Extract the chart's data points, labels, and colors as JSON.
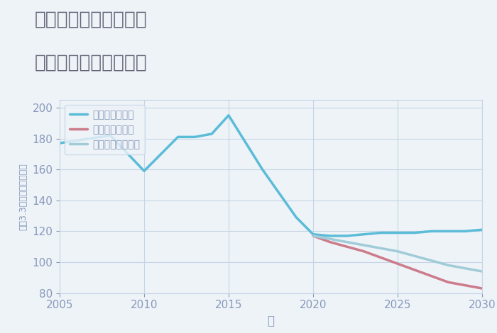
{
  "title_line1": "兵庫県西宮市石在町の",
  "title_line2": "中古戸建ての価格推移",
  "xlabel": "年",
  "ylabel": "坪（3.3㎡）単価（万円）",
  "ylim": [
    80,
    205
  ],
  "yticks": [
    80,
    100,
    120,
    140,
    160,
    180,
    200
  ],
  "xlim": [
    2005,
    2030
  ],
  "xticks": [
    2005,
    2010,
    2015,
    2020,
    2025,
    2030
  ],
  "background_color": "#eef3f8",
  "plot_bg_color": "#eef3f8",
  "grid_color": "#c5d5e5",
  "good_scenario": {
    "label": "グッドシナリオ",
    "color": "#5bbcd8",
    "linewidth": 2.5,
    "x": [
      2005,
      2008,
      2010,
      2012,
      2013,
      2014,
      2015,
      2017,
      2019,
      2020,
      2021,
      2022,
      2023,
      2024,
      2025,
      2026,
      2027,
      2028,
      2029,
      2030
    ],
    "y": [
      177,
      182,
      159,
      181,
      181,
      183,
      195,
      160,
      129,
      118,
      117,
      117,
      118,
      119,
      119,
      119,
      120,
      120,
      120,
      121
    ]
  },
  "bad_scenario": {
    "label": "バッドシナリオ",
    "color": "#cc7b8a",
    "linewidth": 2.5,
    "x": [
      2020,
      2021,
      2022,
      2023,
      2024,
      2025,
      2026,
      2027,
      2028,
      2029,
      2030
    ],
    "y": [
      117,
      113,
      110,
      107,
      103,
      99,
      95,
      91,
      87,
      85,
      83
    ]
  },
  "normal_scenario": {
    "label": "ノーマルシナリオ",
    "color": "#a0ccd8",
    "linewidth": 2.5,
    "x": [
      2020,
      2021,
      2022,
      2023,
      2024,
      2025,
      2026,
      2027,
      2028,
      2029,
      2030
    ],
    "y": [
      117,
      115,
      113,
      111,
      109,
      107,
      104,
      101,
      98,
      96,
      94
    ]
  },
  "title_color": "#666677",
  "title_fontsize": 19,
  "axis_label_color": "#8899bb",
  "tick_color": "#8899bb",
  "tick_fontsize": 11
}
